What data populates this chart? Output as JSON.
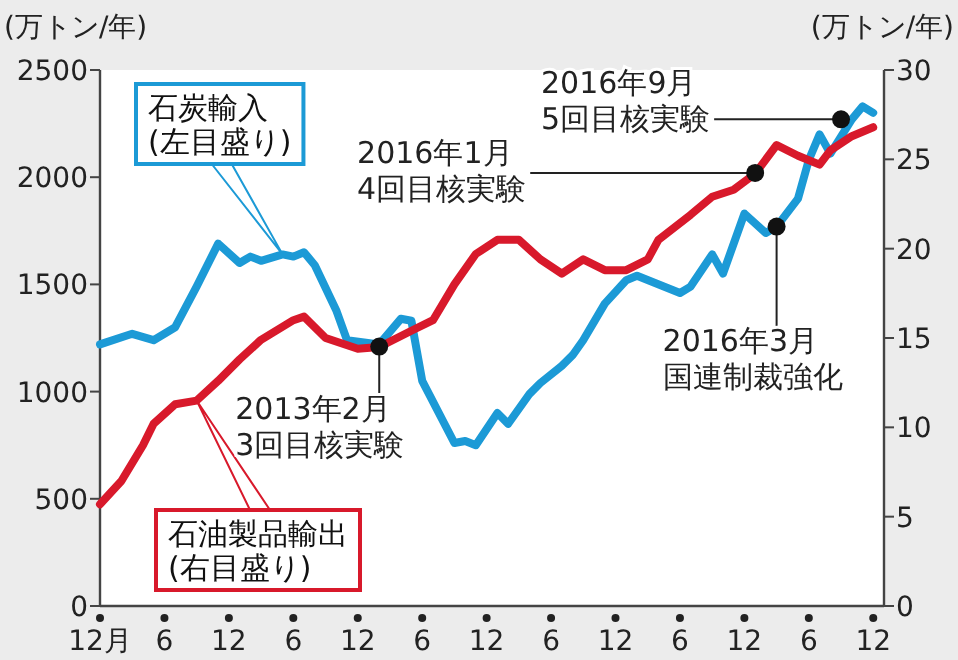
{
  "chart_data": {
    "type": "line",
    "ylabel": "(万トン/年)",
    "y2label": "(万トン/年)",
    "legend": false,
    "grid": false,
    "line_style": "solid",
    "xlim": [
      "2010-12",
      "2017-01"
    ],
    "xticks": [
      {
        "value": "2010-12",
        "label": "12月"
      },
      {
        "value": "2011-06",
        "label": "6"
      },
      {
        "value": "2011-12",
        "label": "12"
      },
      {
        "value": "2012-06",
        "label": "6"
      },
      {
        "value": "2012-12",
        "label": "12"
      },
      {
        "value": "2013-06",
        "label": "6"
      },
      {
        "value": "2013-12",
        "label": "12"
      },
      {
        "value": "2014-06",
        "label": "6"
      },
      {
        "value": "2014-12",
        "label": "12"
      },
      {
        "value": "2015-06",
        "label": "6"
      },
      {
        "value": "2015-12",
        "label": "12"
      },
      {
        "value": "2016-06",
        "label": "6"
      },
      {
        "value": "2016-12",
        "label": "12"
      }
    ],
    "ylim": [
      0,
      2500
    ],
    "yticks": [
      0,
      500,
      1000,
      1500,
      2000,
      2500
    ],
    "y2lim": [
      0,
      30
    ],
    "y2ticks": [
      0,
      5,
      10,
      15,
      20,
      25,
      30
    ],
    "series": [
      {
        "name": "石炭輸入(左目盛り)",
        "color": "#1c9ad6",
        "x": [
          "2010-12",
          "2011-03",
          "2011-05",
          "2011-07",
          "2011-09",
          "2011-11",
          "2012-01",
          "2012-02",
          "2012-03",
          "2012-05",
          "2012-06",
          "2012-07",
          "2012-08",
          "2012-10",
          "2012-11",
          "2013-02",
          "2013-04",
          "2013-05",
          "2013-06",
          "2013-09",
          "2013-10",
          "2013-11",
          "2014-01",
          "2014-02",
          "2014-04",
          "2014-05",
          "2014-07",
          "2014-08",
          "2014-09",
          "2014-11",
          "2015-01",
          "2015-02",
          "2015-06",
          "2015-07",
          "2015-09",
          "2015-10",
          "2015-12",
          "2016-02",
          "2016-03",
          "2016-05",
          "2016-06",
          "2016-07",
          "2016-08",
          "2016-10",
          "2016-11",
          "2016-12"
        ],
        "values": [
          1220,
          1270,
          1240,
          1300,
          1490,
          1690,
          1600,
          1630,
          1610,
          1640,
          1630,
          1650,
          1590,
          1380,
          1240,
          1220,
          1340,
          1330,
          1050,
          760,
          770,
          750,
          900,
          850,
          990,
          1040,
          1120,
          1170,
          1240,
          1410,
          1520,
          1540,
          1460,
          1490,
          1640,
          1550,
          1830,
          1740,
          1770,
          1900,
          2080,
          2200,
          2110,
          2270,
          2330,
          2300
        ]
      },
      {
        "name": "石油製品輸出(右目盛り)",
        "color": "#d8192b",
        "axis": "y2",
        "x": [
          "2010-12",
          "2011-02",
          "2011-04",
          "2011-05",
          "2011-07",
          "2011-09",
          "2011-11",
          "2012-01",
          "2012-03",
          "2012-06",
          "2012-07",
          "2012-09",
          "2012-12",
          "2013-02",
          "2013-05",
          "2013-07",
          "2013-09",
          "2013-11",
          "2014-01",
          "2014-03",
          "2014-05",
          "2014-07",
          "2014-09",
          "2014-11",
          "2015-01",
          "2015-03",
          "2015-04",
          "2015-07",
          "2015-09",
          "2015-11",
          "2016-01",
          "2016-03",
          "2016-05",
          "2016-07",
          "2016-08",
          "2016-10",
          "2016-12"
        ],
        "values": [
          5.7,
          7.0,
          9.0,
          10.2,
          11.3,
          11.5,
          12.6,
          13.8,
          14.9,
          16.0,
          16.2,
          15.0,
          14.4,
          14.5,
          15.4,
          16.0,
          18.0,
          19.7,
          20.5,
          20.5,
          19.4,
          18.6,
          19.4,
          18.8,
          18.8,
          19.4,
          20.5,
          21.9,
          22.9,
          23.3,
          24.2,
          25.8,
          25.2,
          24.7,
          25.5,
          26.3,
          26.8
        ]
      }
    ],
    "annotations": [
      {
        "text": "2013年2月3回目核実験",
        "x": "2013-02",
        "y": 1210
      },
      {
        "text": "2016年1月4回目核実験",
        "x": "2016-01",
        "y": 2020
      },
      {
        "text": "2016年3月国連制裁強化",
        "x": "2016-03",
        "y": 1770
      },
      {
        "text": "2016年9月5回目核実験",
        "x": "2016-09",
        "y": 2270
      }
    ]
  }
}
